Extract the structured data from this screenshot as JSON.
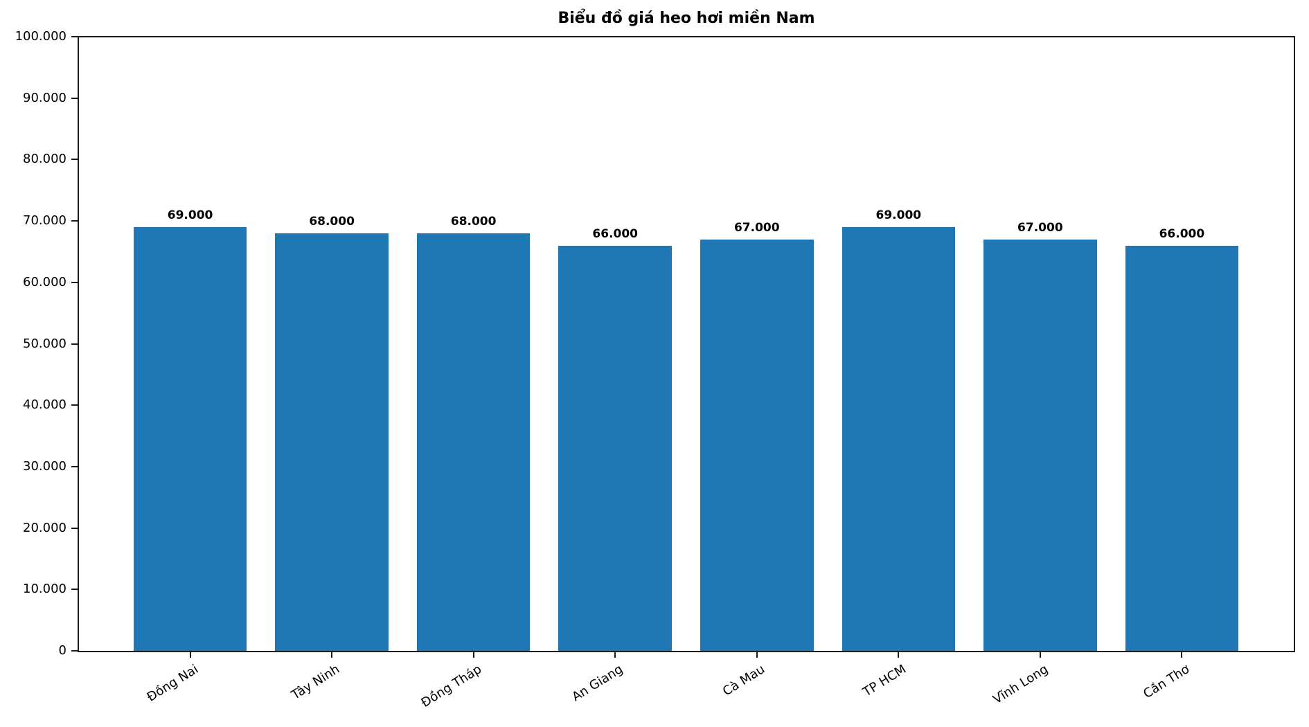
{
  "chart_data": {
    "type": "bar",
    "title": "Biểu đồ giá heo hơi miền Nam",
    "categories": [
      "Đồng Nai",
      "Tây Ninh",
      "Đồng Tháp",
      "An Giang",
      "Cà Mau",
      "TP HCM",
      "Vĩnh Long",
      "Cần Thơ"
    ],
    "values": [
      69000,
      68000,
      68000,
      66000,
      67000,
      69000,
      67000,
      66000
    ],
    "value_labels": [
      "69.000",
      "68.000",
      "68.000",
      "66.000",
      "67.000",
      "69.000",
      "67.000",
      "66.000"
    ],
    "xlabel": "",
    "ylabel": "",
    "ylim": [
      0,
      100000
    ],
    "yticks": [
      0,
      10000,
      20000,
      30000,
      40000,
      50000,
      60000,
      70000,
      80000,
      90000,
      100000
    ],
    "ytick_labels": [
      "0",
      "10.000",
      "20.000",
      "30.000",
      "40.000",
      "50.000",
      "60.000",
      "70.000",
      "80.000",
      "90.000",
      "100.000"
    ],
    "grid": false,
    "legend": null,
    "bar_color": "#1f77b4",
    "bar_width_fraction": 0.8,
    "x_label_rotation_deg": 32
  }
}
